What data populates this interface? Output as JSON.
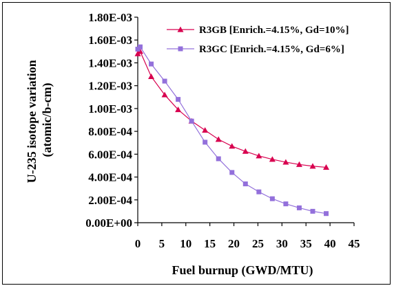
{
  "chart_data": {
    "type": "line",
    "title": "",
    "xlabel": "Fuel burnup (GWD/MTU)",
    "ylabel_line1": "U-235 isotope variation",
    "ylabel_line2": "(atomic/b-cm)",
    "xlim": [
      0,
      45
    ],
    "ylim": [
      0,
      0.0018
    ],
    "x_ticks": [
      "0",
      "5",
      "10",
      "15",
      "20",
      "25",
      "30",
      "35",
      "40",
      "45"
    ],
    "y_ticks": [
      "0.00E+00",
      "2.00E-04",
      "4.00E-04",
      "6.00E-04",
      "8.00E-04",
      "1.00E-03",
      "1.20E-03",
      "1.40E-03",
      "1.60E-03",
      "1.80E-03"
    ],
    "grid": false,
    "legend_position": "top-right",
    "series": [
      {
        "name": "R3GB [Enrich.=4.15%, Gd=10%]",
        "color": "#d8004f",
        "marker": "triangle",
        "x": [
          0,
          0.5,
          2.8,
          5.6,
          8.4,
          11.2,
          14,
          16.8,
          19.6,
          22.4,
          25.2,
          28,
          30.8,
          33.6,
          36.4,
          39.2
        ],
        "y": [
          0.00148,
          0.0015,
          0.00128,
          0.00112,
          0.00099,
          0.00089,
          0.00081,
          0.00073,
          0.00067,
          0.000625,
          0.000585,
          0.000555,
          0.00053,
          0.00051,
          0.000495,
          0.000485
        ]
      },
      {
        "name": "R3GC [Enrich.=4.15%, Gd=6%]",
        "color": "#9370db",
        "marker": "square",
        "x": [
          0,
          0.5,
          2.8,
          5.6,
          8.4,
          11.2,
          14,
          16.8,
          19.6,
          22.4,
          25.2,
          28,
          30.8,
          33.6,
          36.4,
          39.2
        ],
        "y": [
          0.00152,
          0.00154,
          0.00139,
          0.00124,
          0.00108,
          0.00089,
          0.000705,
          0.00056,
          0.00044,
          0.00034,
          0.00027,
          0.00021,
          0.000165,
          0.00013,
          0.0001,
          8e-05
        ]
      }
    ]
  }
}
